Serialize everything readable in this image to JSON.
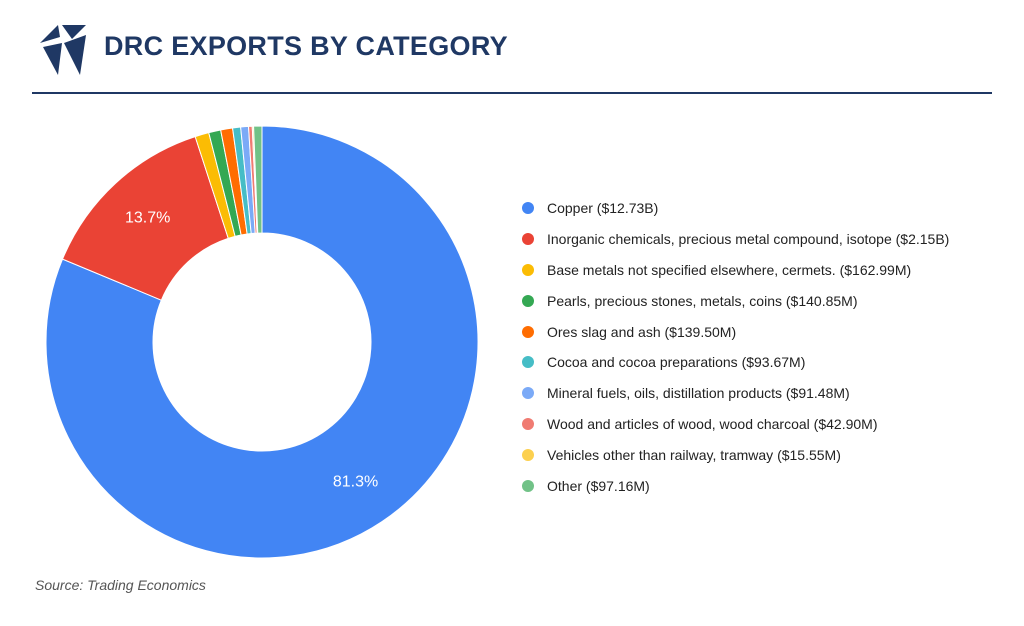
{
  "header": {
    "title": "DRC EXPORTS BY CATEGORY"
  },
  "colors": {
    "brand": "#1f3864"
  },
  "chart_data": {
    "type": "pie",
    "variant": "donut",
    "title": "DRC EXPORTS BY CATEGORY",
    "series": [
      {
        "name": "Copper ($12.73B)",
        "value": 12730,
        "color": "#4285f4"
      },
      {
        "name": "Inorganic chemicals, precious metal compound, isotope ($2.15B)",
        "value": 2150,
        "color": "#ea4335"
      },
      {
        "name": "Base metals not specified elsewhere, cermets. ($162.99M)",
        "value": 162.99,
        "color": "#fbbc04"
      },
      {
        "name": "Pearls, precious stones, metals, coins ($140.85M)",
        "value": 140.85,
        "color": "#34a853"
      },
      {
        "name": "Ores slag and ash ($139.50M)",
        "value": 139.5,
        "color": "#ff6d01"
      },
      {
        "name": "Cocoa and cocoa preparations ($93.67M)",
        "value": 93.67,
        "color": "#46bdc6"
      },
      {
        "name": "Mineral fuels, oils, distillation products ($91.48M)",
        "value": 91.48,
        "color": "#7baaf7"
      },
      {
        "name": "Wood and articles of wood, wood charcoal ($42.90M)",
        "value": 42.9,
        "color": "#f07b72"
      },
      {
        "name": "Vehicles other than railway, tramway ($15.55M)",
        "value": 15.55,
        "color": "#fcd04f"
      },
      {
        "name": "Other ($97.16M)",
        "value": 97.16,
        "color": "#71c287"
      }
    ],
    "data_labels": [
      {
        "series_index": 0,
        "text": "81.3%"
      },
      {
        "series_index": 1,
        "text": "13.7%"
      }
    ],
    "legend_position": "right"
  },
  "footer": {
    "source": "Source: Trading Economics"
  }
}
